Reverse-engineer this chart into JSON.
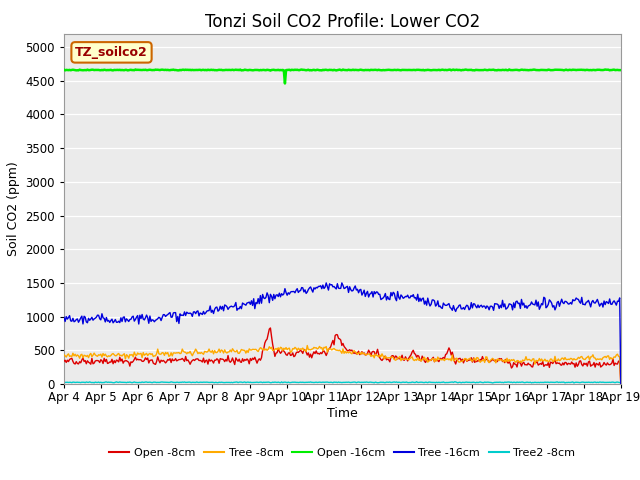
{
  "title": "Tonzi Soil CO2 Profile: Lower CO2",
  "xlabel": "Time",
  "ylabel": "Soil CO2 (ppm)",
  "ylim": [
    0,
    5200
  ],
  "yticks": [
    0,
    500,
    1000,
    1500,
    2000,
    2500,
    3000,
    3500,
    4000,
    4500,
    5000
  ],
  "series": {
    "open_8cm": {
      "color": "#dd0000",
      "label": "Open -8cm"
    },
    "tree_8cm": {
      "color": "#ffaa00",
      "label": "Tree -8cm"
    },
    "open_16cm": {
      "color": "#00ee00",
      "label": "Open -16cm"
    },
    "tree_16cm": {
      "color": "#0000dd",
      "label": "Tree -16cm"
    },
    "tree2_8cm": {
      "color": "#00cccc",
      "label": "Tree2 -8cm"
    }
  },
  "legend_label": "TZ_soilco2",
  "background_color": "#ebebeb",
  "legend_box_facecolor": "#ffffcc",
  "legend_box_edgecolor": "#cc6600",
  "legend_text_color": "#990000",
  "title_fontsize": 12,
  "axis_label_fontsize": 9,
  "tick_fontsize": 8.5,
  "legend_fontsize": 8,
  "n_points": 500
}
